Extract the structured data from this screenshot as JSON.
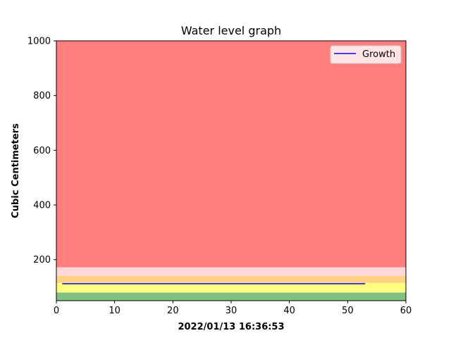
{
  "chart_data": {
    "type": "line",
    "title": "Water level graph",
    "xlabel": "2022/01/13 16:36:53",
    "ylabel": "Cubic Centimeters",
    "xlim": [
      0,
      60
    ],
    "ylim": [
      50,
      1000
    ],
    "xticks": [
      0,
      10,
      20,
      30,
      40,
      50,
      60
    ],
    "yticks": [
      200,
      400,
      600,
      800,
      1000
    ],
    "grid": false,
    "legend_position": "top-right",
    "bands": [
      {
        "from": 50,
        "to": 80,
        "color": "#80c080"
      },
      {
        "from": 80,
        "to": 115,
        "color": "#ffff80"
      },
      {
        "from": 115,
        "to": 140,
        "color": "#ffd280"
      },
      {
        "from": 140,
        "to": 172,
        "color": "#ffd7d7"
      },
      {
        "from": 172,
        "to": 1000,
        "color": "#ff7f7f"
      }
    ],
    "series": [
      {
        "name": "Growth",
        "color": "#0000ff",
        "x": [
          1,
          53
        ],
        "y": [
          112,
          112
        ]
      }
    ]
  }
}
